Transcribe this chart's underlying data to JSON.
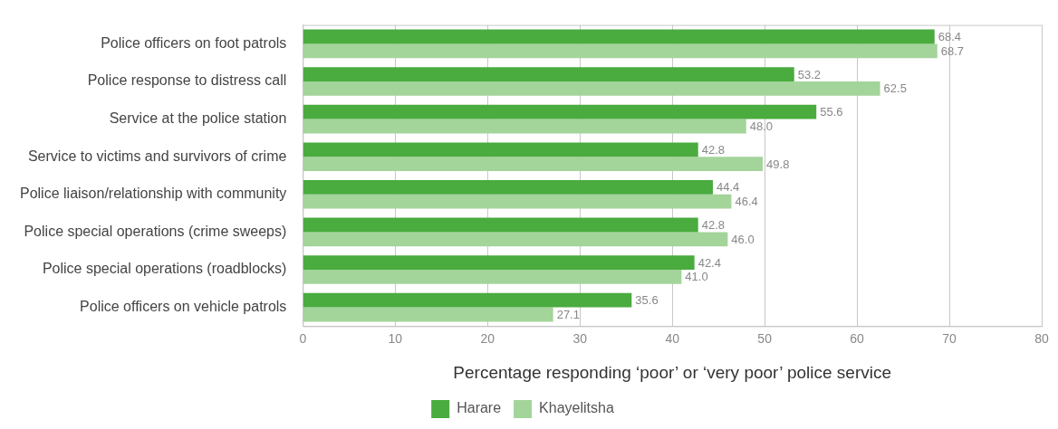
{
  "chart_data": {
    "type": "bar",
    "orientation": "horizontal",
    "xlabel": "Percentage responding ‘poor’ or ‘very poor’ police service",
    "categories": [
      "Police officers on foot patrols",
      "Police response to distress call",
      "Service at the police station",
      "Service to victims and survivors of crime",
      "Police liaison/relationship with community",
      "Police special operations (crime sweeps)",
      "Police special operations (roadblocks)",
      "Police officers on vehicle patrols"
    ],
    "series": [
      {
        "name": "Harare",
        "color": "#4aab3f",
        "values": [
          68.4,
          53.2,
          55.6,
          42.8,
          44.4,
          42.8,
          42.4,
          35.6
        ],
        "value_labels": [
          "68.4",
          "53.2",
          "55.6",
          "42.8",
          "44.4",
          "42.8",
          "42.4",
          "35.6"
        ]
      },
      {
        "name": "Khayelitsha",
        "color": "#a3d49a",
        "values": [
          68.7,
          62.5,
          48,
          49.8,
          46.4,
          46,
          41,
          27.1
        ],
        "value_labels": [
          "68.7",
          "62.5",
          "48.0",
          "49.8",
          "46.4",
          "46.0",
          "41.0",
          "27.1"
        ]
      }
    ],
    "xlim": [
      0,
      80
    ],
    "xticks": [
      0,
      10,
      20,
      30,
      40,
      50,
      60,
      70,
      80
    ],
    "grid": "x",
    "legend": "bottom"
  }
}
